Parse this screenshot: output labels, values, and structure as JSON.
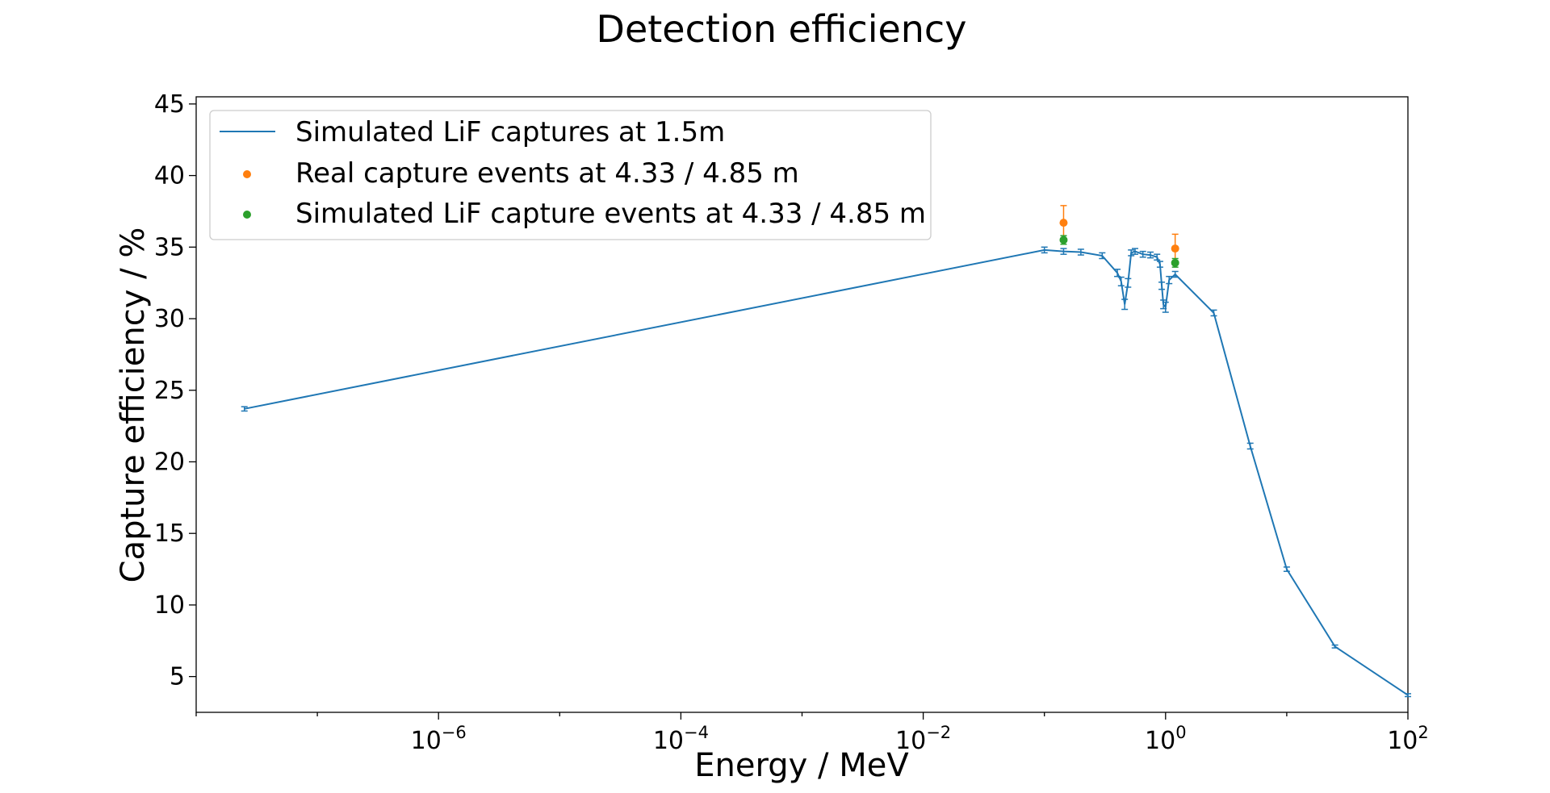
{
  "chart_data": {
    "type": "line",
    "title": "Detection efficiency",
    "xlabel": "Energy / MeV",
    "ylabel": "Capture efficiency / %",
    "xscale": "log",
    "xlim": [
      1e-08,
      100
    ],
    "ylim": [
      2.5,
      45.5
    ],
    "x_ticks": [
      {
        "base": "10",
        "exp": "−6",
        "value": 1e-06
      },
      {
        "base": "10",
        "exp": "−4",
        "value": 0.0001
      },
      {
        "base": "10",
        "exp": "−2",
        "value": 0.01
      },
      {
        "base": "10",
        "exp": "0",
        "value": 1
      },
      {
        "base": "10",
        "exp": "2",
        "value": 100
      }
    ],
    "y_ticks": [
      5,
      10,
      15,
      20,
      25,
      30,
      35,
      40,
      45
    ],
    "legend_position": "upper-left",
    "series": [
      {
        "name": "Simulated LiF captures at 1.5m",
        "kind": "line",
        "color": "#1f77b4",
        "points": [
          {
            "x": 2.5e-08,
            "y": 23.7,
            "err": 0.15
          },
          {
            "x": 0.1,
            "y": 34.8,
            "err": 0.2
          },
          {
            "x": 0.144,
            "y": 34.7,
            "err": 0.2
          },
          {
            "x": 0.2,
            "y": 34.65,
            "err": 0.2
          },
          {
            "x": 0.3,
            "y": 34.4,
            "err": 0.2
          },
          {
            "x": 0.4,
            "y": 33.2,
            "err": 0.25
          },
          {
            "x": 0.43,
            "y": 32.6,
            "err": 0.3
          },
          {
            "x": 0.46,
            "y": 31.0,
            "err": 0.35
          },
          {
            "x": 0.49,
            "y": 32.5,
            "err": 0.3
          },
          {
            "x": 0.52,
            "y": 34.6,
            "err": 0.2
          },
          {
            "x": 0.56,
            "y": 34.7,
            "err": 0.2
          },
          {
            "x": 0.65,
            "y": 34.5,
            "err": 0.2
          },
          {
            "x": 0.75,
            "y": 34.45,
            "err": 0.2
          },
          {
            "x": 0.85,
            "y": 34.3,
            "err": 0.2
          },
          {
            "x": 0.9,
            "y": 33.8,
            "err": 0.2
          },
          {
            "x": 0.93,
            "y": 32.3,
            "err": 0.25
          },
          {
            "x": 0.96,
            "y": 31.0,
            "err": 0.3
          },
          {
            "x": 1.0,
            "y": 30.8,
            "err": 0.35
          },
          {
            "x": 1.07,
            "y": 32.7,
            "err": 0.25
          },
          {
            "x": 1.2,
            "y": 33.1,
            "err": 0.2
          },
          {
            "x": 2.5,
            "y": 30.4,
            "err": 0.2
          },
          {
            "x": 5.0,
            "y": 21.1,
            "err": 0.2
          },
          {
            "x": 10.0,
            "y": 12.5,
            "err": 0.15
          },
          {
            "x": 25.0,
            "y": 7.1,
            "err": 0.1
          },
          {
            "x": 100.0,
            "y": 3.7,
            "err": 0.1
          }
        ]
      },
      {
        "name": "Real capture events at 4.33 / 4.85 m",
        "kind": "scatter",
        "color": "#ff7f0e",
        "points": [
          {
            "x": 0.144,
            "y": 36.7,
            "err": 1.2
          },
          {
            "x": 1.2,
            "y": 34.9,
            "err": 1.0
          }
        ]
      },
      {
        "name": "Simulated LiF capture events at 4.33 / 4.85 m",
        "kind": "scatter",
        "color": "#2ca02c",
        "points": [
          {
            "x": 0.144,
            "y": 35.5,
            "err": 0.3
          },
          {
            "x": 1.2,
            "y": 33.9,
            "err": 0.3
          }
        ]
      }
    ]
  }
}
